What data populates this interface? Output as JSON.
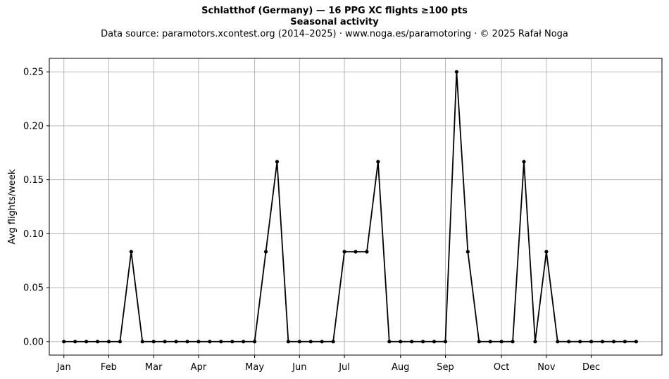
{
  "header": {
    "title": "Schlatthof (Germany)  —  16 PPG XC flights ≥100 pts",
    "subtitle": "Seasonal activity",
    "source": "Data source: paramotors.xcontest.org (2014–2025)  ·  www.noga.es/paramotoring  ·  © 2025 Rafał Noga"
  },
  "chart_data": {
    "type": "line",
    "title": "Schlatthof (Germany)  —  16 PPG XC flights ≥100 pts",
    "subtitle": "Seasonal activity",
    "xlabel": "",
    "ylabel": "Avg flights/week",
    "x_unit": "week of year",
    "xlim": [
      -1.3,
      53.3
    ],
    "ylim": [
      -0.0125,
      0.2625
    ],
    "x_ticks": [
      {
        "week": 0,
        "label": "Jan"
      },
      {
        "week": 4,
        "label": "Feb"
      },
      {
        "week": 8,
        "label": "Mar"
      },
      {
        "week": 12,
        "label": "Apr"
      },
      {
        "week": 17,
        "label": "May"
      },
      {
        "week": 21,
        "label": "Jun"
      },
      {
        "week": 25,
        "label": "Jul"
      },
      {
        "week": 30,
        "label": "Aug"
      },
      {
        "week": 34,
        "label": "Sep"
      },
      {
        "week": 39,
        "label": "Oct"
      },
      {
        "week": 43,
        "label": "Nov"
      },
      {
        "week": 47,
        "label": "Dec"
      }
    ],
    "y_ticks": [
      {
        "value": 0.0,
        "label": "0.00"
      },
      {
        "value": 0.05,
        "label": "0.05"
      },
      {
        "value": 0.1,
        "label": "0.10"
      },
      {
        "value": 0.15,
        "label": "0.15"
      },
      {
        "value": 0.2,
        "label": "0.20"
      },
      {
        "value": 0.25,
        "label": "0.25"
      }
    ],
    "grid": true,
    "series": [
      {
        "color": "#000000",
        "marker": "circle",
        "x": [
          0,
          1,
          2,
          3,
          4,
          5,
          6,
          7,
          8,
          9,
          10,
          11,
          12,
          13,
          14,
          15,
          16,
          17,
          18,
          19,
          20,
          21,
          22,
          23,
          24,
          25,
          26,
          27,
          28,
          29,
          30,
          31,
          32,
          33,
          34,
          35,
          36,
          37,
          38,
          39,
          40,
          41,
          42,
          43,
          44,
          45,
          46,
          47,
          48,
          49,
          50,
          51
        ],
        "values": [
          0,
          0,
          0,
          0,
          0,
          0,
          0.0833,
          0,
          0,
          0,
          0,
          0,
          0,
          0,
          0,
          0,
          0,
          0,
          0.0833,
          0.1667,
          0,
          0,
          0,
          0,
          0,
          0.0833,
          0.0833,
          0.0833,
          0.1667,
          0,
          0,
          0,
          0,
          0,
          0,
          0.25,
          0.0833,
          0,
          0,
          0,
          0,
          0.1667,
          0,
          0.0833,
          0,
          0,
          0,
          0,
          0,
          0,
          0,
          0
        ]
      }
    ]
  }
}
